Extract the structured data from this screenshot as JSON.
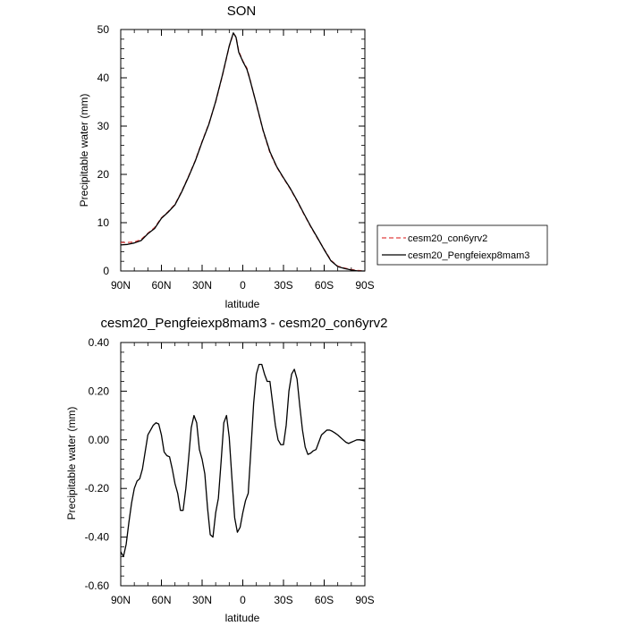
{
  "chart_data": [
    {
      "type": "line",
      "title": "SON",
      "xlabel": "latitude",
      "ylabel": "Precipitable water (mm)",
      "xlim": [
        90,
        -90
      ],
      "ylim": [
        0,
        50
      ],
      "x_ticks": [
        90,
        60,
        30,
        0,
        -30,
        -60,
        -90
      ],
      "x_tick_labels": [
        "90N",
        "60N",
        "30N",
        "0",
        "30S",
        "60S",
        "90S"
      ],
      "y_ticks": [
        0,
        10,
        20,
        30,
        40,
        50
      ],
      "y_tick_labels": [
        "0",
        "10",
        "20",
        "30",
        "40",
        "50"
      ],
      "legend_position": "right",
      "series": [
        {
          "name": "cesm20_con6yrv2",
          "color": "#e04040",
          "dash": "dashed",
          "x": [
            90,
            85,
            80,
            75,
            70,
            65,
            60,
            55,
            50,
            45,
            40,
            35,
            30,
            25,
            20,
            15,
            10,
            7,
            5,
            3,
            0,
            -3,
            -5,
            -10,
            -15,
            -20,
            -25,
            -30,
            -35,
            -40,
            -45,
            -50,
            -55,
            -60,
            -65,
            -70,
            -75,
            -80,
            -85,
            -90
          ],
          "y": [
            5.9,
            5.9,
            6.0,
            6.5,
            7.8,
            9.0,
            11.0,
            12.3,
            13.8,
            16.5,
            19.6,
            22.9,
            26.8,
            30.5,
            35.0,
            40.5,
            46.5,
            49.2,
            48.5,
            45.5,
            43.5,
            42.0,
            40.0,
            34.5,
            29.0,
            24.5,
            21.5,
            19.2,
            17.0,
            14.5,
            11.8,
            9.2,
            6.8,
            4.5,
            2.2,
            1.0,
            0.6,
            0.3,
            0.1,
            0.0
          ]
        },
        {
          "name": "cesm20_Pengfeiexp8mam3",
          "color": "#000000",
          "dash": "solid",
          "x": [
            90,
            85,
            80,
            75,
            70,
            65,
            60,
            55,
            50,
            45,
            40,
            35,
            30,
            25,
            20,
            15,
            10,
            7,
            5,
            3,
            0,
            -3,
            -5,
            -10,
            -15,
            -20,
            -25,
            -30,
            -35,
            -40,
            -45,
            -50,
            -55,
            -60,
            -65,
            -70,
            -75,
            -80,
            -85,
            -90
          ],
          "y": [
            5.4,
            5.5,
            5.8,
            6.3,
            7.7,
            8.8,
            10.9,
            12.2,
            13.7,
            16.4,
            19.5,
            22.8,
            26.7,
            30.4,
            35.1,
            40.6,
            46.6,
            49.3,
            48.4,
            45.3,
            43.4,
            41.8,
            39.9,
            34.6,
            29.1,
            24.7,
            21.6,
            19.3,
            17.1,
            14.6,
            11.9,
            9.3,
            6.9,
            4.4,
            2.1,
            0.9,
            0.5,
            0.2,
            0.0,
            0.0
          ]
        }
      ]
    },
    {
      "type": "line",
      "title": "cesm20_Pengfeiexp8mam3 - cesm20_con6yrv2",
      "xlabel": "latitude",
      "ylabel": "Precipitable water (mm)",
      "xlim": [
        90,
        -90
      ],
      "ylim": [
        -0.6,
        0.4
      ],
      "x_ticks": [
        90,
        60,
        30,
        0,
        -30,
        -60,
        -90
      ],
      "x_tick_labels": [
        "90N",
        "60N",
        "30N",
        "0",
        "30S",
        "60S",
        "90S"
      ],
      "y_ticks": [
        -0.6,
        -0.4,
        -0.2,
        0.0,
        0.2,
        0.4
      ],
      "y_tick_labels": [
        "-0.60",
        "-0.40",
        "-0.20",
        "0.00",
        "0.20",
        "0.40"
      ],
      "series": [
        {
          "color": "#000000",
          "x": [
            90,
            88,
            86,
            84,
            82,
            80,
            78,
            76,
            74,
            72,
            70,
            68,
            66,
            64,
            62,
            60,
            58,
            56,
            54,
            52,
            50,
            48,
            46,
            44,
            42,
            40,
            38,
            36,
            34,
            32,
            30,
            28,
            26,
            24,
            22,
            20,
            18,
            16,
            14,
            12,
            10,
            8,
            6,
            4,
            2,
            0,
            -2,
            -4,
            -6,
            -8,
            -10,
            -12,
            -14,
            -16,
            -18,
            -20,
            -22,
            -24,
            -26,
            -28,
            -30,
            -32,
            -34,
            -36,
            -38,
            -40,
            -42,
            -44,
            -46,
            -48,
            -50,
            -52,
            -54,
            -56,
            -58,
            -60,
            -62,
            -64,
            -66,
            -68,
            -70,
            -72,
            -74,
            -76,
            -78,
            -80,
            -82,
            -84,
            -86,
            -88,
            -90
          ],
          "y": [
            -0.46,
            -0.48,
            -0.43,
            -0.34,
            -0.26,
            -0.2,
            -0.17,
            -0.16,
            -0.12,
            -0.05,
            0.02,
            0.04,
            0.06,
            0.07,
            0.065,
            0.02,
            -0.05,
            -0.065,
            -0.07,
            -0.12,
            -0.18,
            -0.22,
            -0.29,
            -0.29,
            -0.2,
            -0.08,
            0.05,
            0.1,
            0.07,
            -0.04,
            -0.08,
            -0.14,
            -0.28,
            -0.39,
            -0.4,
            -0.3,
            -0.24,
            -0.09,
            0.07,
            0.1,
            0.01,
            -0.16,
            -0.32,
            -0.38,
            -0.36,
            -0.3,
            -0.25,
            -0.22,
            -0.04,
            0.15,
            0.27,
            0.31,
            0.31,
            0.27,
            0.24,
            0.24,
            0.15,
            0.06,
            0.0,
            -0.02,
            -0.02,
            0.06,
            0.2,
            0.27,
            0.29,
            0.25,
            0.14,
            0.04,
            -0.03,
            -0.06,
            -0.055,
            -0.045,
            -0.04,
            -0.01,
            0.02,
            0.03,
            0.04,
            0.04,
            0.035,
            0.028,
            0.02,
            0.01,
            0.0,
            -0.01,
            -0.015,
            -0.01,
            -0.005,
            0.0,
            0.0,
            -0.002,
            -0.005
          ]
        }
      ]
    }
  ]
}
